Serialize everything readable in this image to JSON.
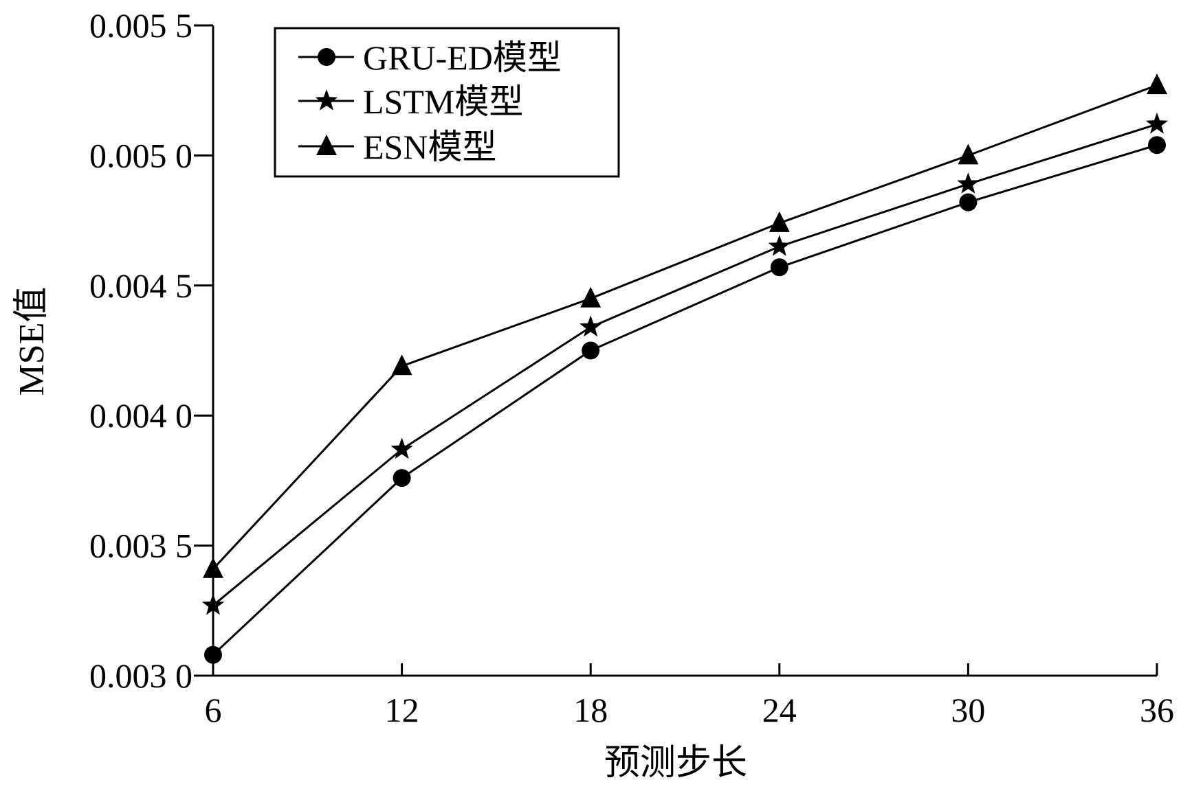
{
  "chart_data": {
    "type": "line",
    "xlabel": "预测步长",
    "ylabel": "MSE值",
    "x": [
      6,
      12,
      18,
      24,
      30,
      36
    ],
    "xlim": [
      6,
      36
    ],
    "ylim": [
      0.003,
      0.0055
    ],
    "yticks": [
      0.003,
      0.0035,
      0.004,
      0.0045,
      0.005,
      0.0055
    ],
    "ytick_labels": [
      "0.003 0",
      "0.003 5",
      "0.004 0",
      "0.004 5",
      "0.005 0",
      "0.005 5"
    ],
    "xtick_labels": [
      "6",
      "12",
      "18",
      "24",
      "30",
      "36"
    ],
    "grid": false,
    "legend_position": "top-left",
    "series": [
      {
        "name": "GRU-ED模型",
        "marker": "circle",
        "color": "#000000",
        "values": [
          0.00308,
          0.00376,
          0.00425,
          0.00457,
          0.00482,
          0.00504
        ]
      },
      {
        "name": "LSTM模型",
        "marker": "star",
        "color": "#000000",
        "values": [
          0.00327,
          0.00387,
          0.00434,
          0.00465,
          0.00489,
          0.00512
        ]
      },
      {
        "name": "ESN模型",
        "marker": "triangle",
        "color": "#000000",
        "values": [
          0.00341,
          0.00419,
          0.00445,
          0.00474,
          0.005,
          0.00527
        ]
      }
    ]
  }
}
